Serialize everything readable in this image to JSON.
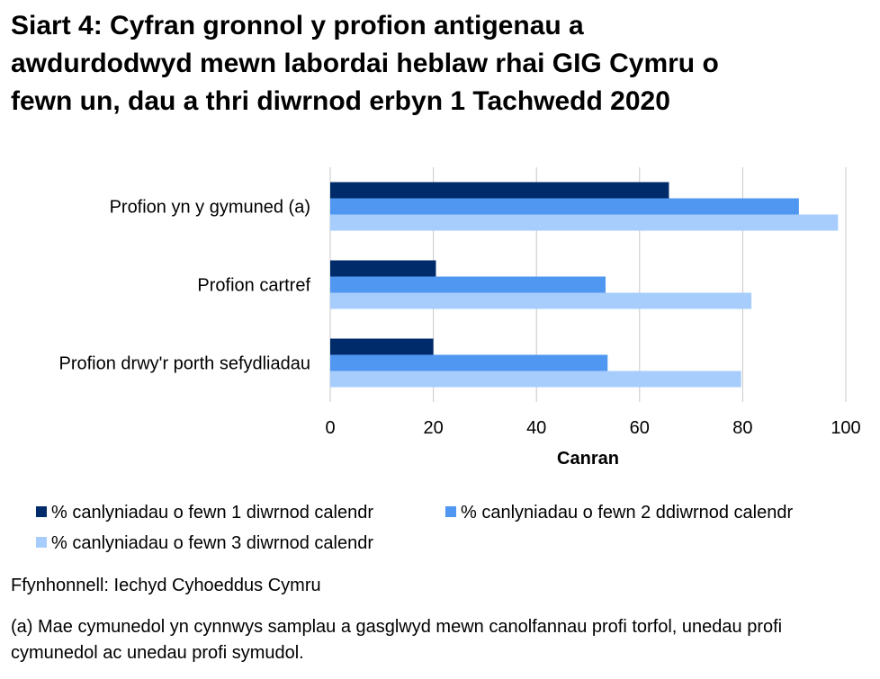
{
  "title_lines": [
    "Siart 4: Cyfran gronnol y profion antigenau a",
    "awdurdodwyd mewn labordai heblaw rhai GIG Cymru o",
    "fewn un, dau a thri diwrnod erbyn 1 Tachwedd 2020"
  ],
  "source": "Ffynhonnell: Iechyd Cyhoeddus Cymru",
  "note_lines": [
    "(a) Mae cymunedol yn cynnwys samplau a gasglwyd mewn canolfannau profi torfol, unedau profi",
    "cymunedol ac unedau profi symudol."
  ],
  "chart_data": {
    "type": "bar",
    "orientation": "horizontal",
    "title": "Siart 4: Cyfran gronnol y profion antigenau a awdurdodwyd mewn labordai heblaw rhai GIG Cymru o fewn un, dau a thri diwrnod erbyn 1 Tachwedd 2020",
    "categories": [
      "Profion yn y gymuned (a)",
      "Profion cartref",
      "Profion drwy'r porth sefydliadau"
    ],
    "series": [
      {
        "name": "% canlyniadau o fewn 1 diwrnod calendr",
        "color": "#002b6b",
        "values": [
          65.7,
          20.5,
          20.0
        ]
      },
      {
        "name": "% canlyniadau o fewn 2 ddiwrnod calendr",
        "color": "#4f97f0",
        "values": [
          90.9,
          53.4,
          53.8
        ]
      },
      {
        "name": "% canlyniadau o fewn 3 diwrnod calendr",
        "color": "#a7cdfc",
        "values": [
          98.5,
          81.7,
          79.7
        ]
      }
    ],
    "xlabel": "Canran",
    "ylabel": "",
    "xlim": [
      0,
      100
    ],
    "xticks": [
      0,
      20,
      40,
      60,
      80,
      100
    ],
    "grid": "vertical",
    "legend_position": "bottom"
  }
}
